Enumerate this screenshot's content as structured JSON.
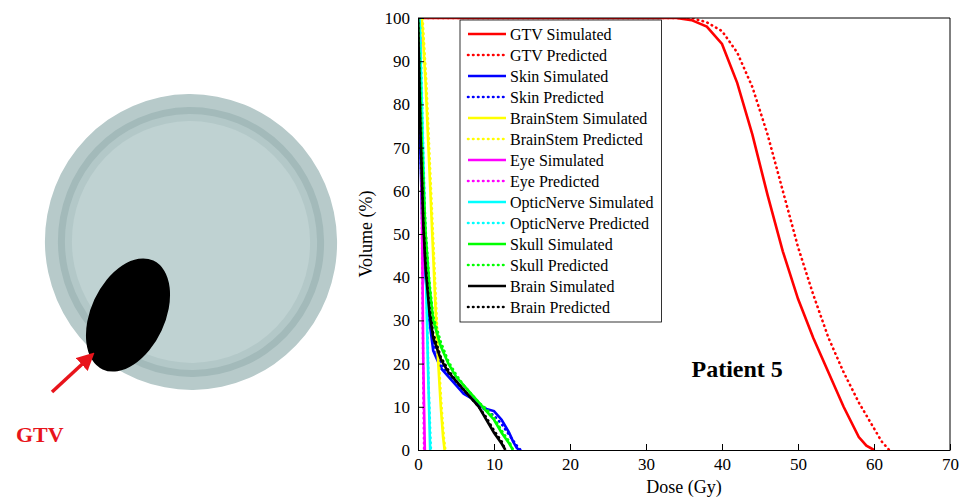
{
  "chart_data": {
    "type": "line",
    "x_label": "Dose (Gy)",
    "y_label": "Volume (%)",
    "xlim": [
      0,
      70
    ],
    "ylim": [
      0,
      100
    ],
    "xticks": [
      0,
      10,
      20,
      30,
      40,
      50,
      60,
      70
    ],
    "yticks": [
      0,
      10,
      20,
      30,
      40,
      50,
      60,
      70,
      80,
      90,
      100
    ],
    "legend": "upper left",
    "annotations": [
      "Patient 5"
    ],
    "series": [
      {
        "name": "GTV Simulated",
        "color": "#ff0000",
        "line_style": "solid",
        "x": [
          0,
          34,
          36,
          38,
          40,
          42,
          44,
          46,
          48,
          50,
          52,
          54,
          56,
          58,
          59,
          60
        ],
        "values": [
          100,
          100,
          99.5,
          98,
          94,
          85,
          73,
          59,
          46,
          35,
          26,
          18,
          10,
          3,
          1,
          0
        ]
      },
      {
        "name": "GTV Predicted",
        "color": "#ff0000",
        "line_style": "dotted",
        "x": [
          0,
          35,
          36,
          38,
          40,
          42,
          44,
          46,
          48,
          50,
          52,
          54,
          56,
          58,
          60,
          61,
          62
        ],
        "values": [
          100,
          100,
          100,
          99,
          97,
          92,
          84,
          73,
          60,
          47,
          36,
          26,
          18,
          11,
          5,
          2,
          0
        ]
      },
      {
        "name": "Skin Simulated",
        "color": "#0000ff",
        "line_style": "solid",
        "x": [
          0,
          0.3,
          0.6,
          1,
          1.5,
          2,
          3,
          4,
          5,
          6,
          7,
          8,
          9,
          10,
          11,
          12,
          12.5,
          13,
          13.3
        ],
        "values": [
          100,
          70,
          50,
          40,
          30,
          23,
          19,
          17,
          15,
          13,
          12,
          10.5,
          9.5,
          9,
          7,
          4,
          2,
          0.5,
          0
        ]
      },
      {
        "name": "Skin Predicted",
        "color": "#0000ff",
        "line_style": "dotted",
        "x": [
          0,
          0.3,
          0.6,
          1,
          1.5,
          2,
          3,
          4,
          5,
          6,
          7,
          8,
          9,
          10,
          11,
          12,
          13,
          13.5
        ],
        "values": [
          100,
          72,
          52,
          41,
          31,
          25,
          20,
          17.5,
          15.5,
          13.5,
          12,
          10.5,
          9,
          8,
          6,
          3.5,
          1,
          0
        ]
      },
      {
        "name": "BrainStem Simulated",
        "color": "#ffff00",
        "line_style": "solid",
        "x": [
          0,
          0.5,
          1,
          1.5,
          2,
          2.5,
          3,
          3.3,
          3.5
        ],
        "values": [
          100,
          100,
          85,
          65,
          45,
          25,
          10,
          3,
          0
        ]
      },
      {
        "name": "BrainStem Predicted",
        "color": "#ffff00",
        "line_style": "dotted",
        "x": [
          0,
          0.6,
          1.1,
          1.6,
          2.1,
          2.6,
          3.1,
          3.4,
          3.6
        ],
        "values": [
          100,
          100,
          85,
          65,
          45,
          25,
          10,
          3,
          0
        ]
      },
      {
        "name": "Eye Simulated",
        "color": "#ff00ff",
        "line_style": "solid",
        "x": [
          0,
          0.3,
          0.5,
          0.7,
          0.9
        ],
        "values": [
          100,
          95,
          60,
          20,
          0
        ]
      },
      {
        "name": "Eye Predicted",
        "color": "#ff00ff",
        "line_style": "dotted",
        "x": [
          0,
          0.3,
          0.5,
          0.7,
          0.8
        ],
        "values": [
          100,
          92,
          55,
          15,
          0
        ]
      },
      {
        "name": "OpticNerve Simulated",
        "color": "#00ffff",
        "line_style": "solid",
        "x": [
          0,
          0.2,
          0.8,
          1.3,
          1.6
        ],
        "values": [
          100,
          100,
          60,
          20,
          0
        ]
      },
      {
        "name": "OpticNerve Predicted",
        "color": "#00ffff",
        "line_style": "dotted",
        "x": [
          0,
          0.3,
          0.9,
          1.4,
          1.7
        ],
        "values": [
          100,
          98,
          55,
          15,
          0
        ]
      },
      {
        "name": "Skull Simulated",
        "color": "#00ff00",
        "line_style": "solid",
        "x": [
          0,
          0.5,
          1,
          1.5,
          2,
          3,
          4,
          5,
          6,
          7,
          8,
          9,
          10,
          11,
          12,
          12.5
        ],
        "values": [
          100,
          70,
          50,
          38,
          30,
          24,
          20,
          17,
          15,
          13,
          11,
          9,
          7,
          4,
          1.5,
          0
        ]
      },
      {
        "name": "Skull Predicted",
        "color": "#00ff00",
        "line_style": "dotted",
        "x": [
          0,
          0.5,
          1,
          1.5,
          2,
          3,
          4,
          5,
          6,
          7,
          8,
          9,
          10,
          11,
          12,
          12.5
        ],
        "values": [
          100,
          72,
          51,
          39,
          31,
          25,
          20.5,
          17.5,
          15,
          13,
          11,
          9.5,
          7.5,
          4.5,
          2,
          0
        ]
      },
      {
        "name": "Brain Simulated",
        "color": "#000000",
        "line_style": "solid",
        "x": [
          0,
          0.3,
          0.7,
          1,
          1.5,
          2,
          3,
          4,
          5,
          6,
          7,
          8,
          9,
          10,
          11,
          11.5
        ],
        "values": [
          100,
          75,
          52,
          42,
          32,
          26,
          21,
          18,
          16,
          14,
          12,
          10,
          7,
          4,
          1.5,
          0
        ]
      },
      {
        "name": "Brain Predicted",
        "color": "#000000",
        "line_style": "dotted",
        "x": [
          0,
          0.3,
          0.7,
          1,
          1.5,
          2,
          3,
          4,
          5,
          6,
          7,
          8,
          9,
          10,
          11,
          11.5
        ],
        "values": [
          100,
          76,
          53,
          43,
          33,
          27,
          21.5,
          18.5,
          16,
          14,
          12,
          10,
          7.5,
          4.5,
          2,
          0
        ]
      }
    ]
  },
  "diagram": {
    "label": "GTV"
  }
}
